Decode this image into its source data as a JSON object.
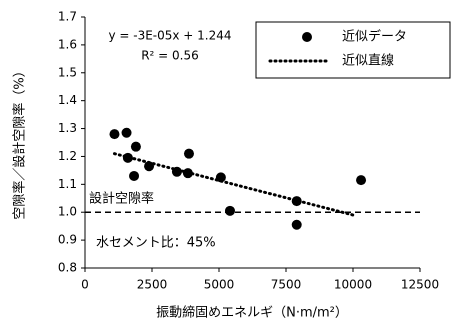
{
  "chart_data": {
    "type": "scatter",
    "x_label": "振動締固めエネルギ（N·m/m²）",
    "y_label": "空隙率／設計空隙率（%）",
    "annotations": [
      "y = -3E-05x + 1.244",
      "R² = 0.56",
      "水セメント比：45%"
    ],
    "reference": {
      "label": "設計空隙率",
      "value": 1.0
    },
    "xlim": [
      0,
      12500
    ],
    "xticks": [
      0,
      2500,
      5000,
      7500,
      10000,
      12500
    ],
    "ylim": [
      0.8,
      1.7
    ],
    "yticks": [
      0.8,
      0.9,
      {
        "value": 1.0,
        "label": "1.0"
      },
      1.1,
      1.2,
      1.3,
      1.4,
      1.5,
      1.6,
      1.7
    ],
    "legend": "top-right",
    "series": [
      {
        "name": "近似データ",
        "color": "#000000",
        "style": "marker",
        "x": [
          1100,
          1550,
          1600,
          1900,
          1830,
          2390,
          3430,
          3880,
          3840,
          5070,
          5410,
          7900,
          7900,
          10300
        ],
        "values": [
          1.28,
          1.285,
          1.195,
          1.235,
          1.13,
          1.165,
          1.145,
          1.21,
          1.14,
          1.125,
          1.005,
          1.04,
          0.955,
          1.115
        ]
      },
      {
        "name": "近似直線",
        "color": "#000000",
        "style": "dotted",
        "x": [
          1100,
          10000
        ],
        "values": [
          1.21,
          0.99
        ]
      }
    ]
  }
}
